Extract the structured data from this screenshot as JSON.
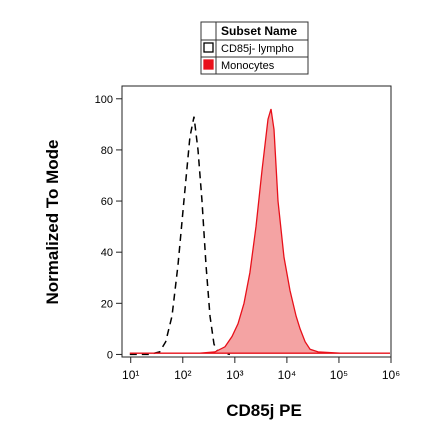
{
  "chart_data": {
    "type": "histogram-overlay",
    "xlabel": "CD85j PE",
    "ylabel": "Normalized To Mode",
    "legend_title": "Subset Name",
    "xscale": "log",
    "xlim": [
      6.8,
      1000000
    ],
    "xticks": [
      {
        "value": 10,
        "label": "10¹"
      },
      {
        "value": 100,
        "label": "10²"
      },
      {
        "value": 1000,
        "label": "10³"
      },
      {
        "value": 10000,
        "label": "10⁴"
      },
      {
        "value": 100000,
        "label": "10⁵"
      },
      {
        "value": 1000000,
        "label": "10⁶"
      }
    ],
    "ylim": [
      -1,
      105
    ],
    "yticks": [
      0,
      20,
      40,
      60,
      80,
      100
    ],
    "series": [
      {
        "name": "CD85j- lympho",
        "color": "#000000",
        "dashed": true,
        "filled": false,
        "x": [
          9.6,
          23,
          36,
          47,
          62,
          81,
          105,
          137,
          164,
          196,
          234,
          279,
          334,
          398,
          474,
          805
        ],
        "values": [
          0,
          0,
          1,
          5,
          15,
          35,
          60,
          85,
          93,
          80,
          60,
          35,
          15,
          4,
          1,
          0
        ]
      },
      {
        "name": "Monocytes",
        "color": "#e8101a",
        "dashed": false,
        "filled": true,
        "fill_color": "#f4a3a3",
        "x": [
          9.6,
          214,
          415,
          646,
          881,
          1148,
          1500,
          1950,
          2550,
          3320,
          4340,
          4960,
          5660,
          6760,
          8820,
          11500,
          15000,
          17900,
          22400,
          27900,
          39800,
          105000,
          955000
        ],
        "values": [
          0.5,
          0.5,
          1,
          3,
          7,
          12,
          20,
          32,
          50,
          72,
          92,
          96,
          88,
          60,
          38,
          25,
          15,
          10,
          5,
          2,
          1,
          0.5,
          0.5
        ]
      }
    ]
  }
}
